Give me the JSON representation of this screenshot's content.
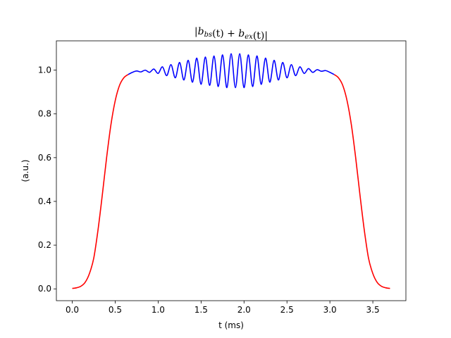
{
  "chart_data": {
    "type": "line",
    "title": "|b_bs(t) + b_ex(t)|",
    "xlabel": "t (ms)",
    "ylabel": "(a.u.)",
    "xlim": [
      -0.185,
      3.885
    ],
    "ylim": [
      -0.054,
      1.134
    ],
    "xticks": [
      0.0,
      0.5,
      1.0,
      1.5,
      2.0,
      2.5,
      3.0,
      3.5
    ],
    "xtick_labels": [
      "0.0",
      "0.5",
      "1.0",
      "1.5",
      "2.0",
      "2.5",
      "3.0",
      "3.5"
    ],
    "yticks": [
      0.0,
      0.2,
      0.4,
      0.6,
      0.8,
      1.0
    ],
    "ytick_labels": [
      "0.0",
      "0.2",
      "0.4",
      "0.6",
      "0.8",
      "1.0"
    ],
    "grid": false,
    "series": [
      {
        "color": "#ff0000",
        "segments": [
          {
            "x": [
              0.0,
              0.05,
              0.1,
              0.15,
              0.2,
              0.25,
              0.3,
              0.35,
              0.4,
              0.45,
              0.5,
              0.55,
              0.6,
              0.65
            ],
            "y": [
              0.002,
              0.005,
              0.012,
              0.03,
              0.07,
              0.14,
              0.27,
              0.43,
              0.6,
              0.75,
              0.86,
              0.93,
              0.965,
              0.98
            ]
          },
          {
            "x": [
              3.05,
              3.1,
              3.15,
              3.2,
              3.25,
              3.3,
              3.35,
              3.4,
              3.45,
              3.5,
              3.55,
              3.6,
              3.65,
              3.7
            ],
            "y": [
              0.98,
              0.965,
              0.93,
              0.86,
              0.75,
              0.6,
              0.43,
              0.27,
              0.14,
              0.07,
              0.03,
              0.012,
              0.005,
              0.002
            ]
          }
        ]
      },
      {
        "color": "#0000ff",
        "segments": [
          {
            "x": [
              0.65,
              0.7,
              0.75,
              0.8,
              0.85,
              0.9,
              0.95,
              1.0,
              1.05,
              1.1,
              1.15,
              1.2,
              1.25,
              1.3,
              1.35,
              1.4,
              1.45,
              1.5,
              1.55,
              1.6,
              1.65,
              1.7,
              1.75,
              1.8,
              1.85,
              1.9,
              1.95,
              2.0,
              2.05,
              2.1,
              2.15,
              2.2,
              2.25,
              2.3,
              2.35,
              2.4,
              2.45,
              2.5,
              2.55,
              2.6,
              2.65,
              2.7,
              2.75,
              2.8,
              2.85,
              2.9,
              2.95,
              3.0,
              3.05
            ],
            "y": [
              0.98,
              0.99,
              0.996,
              0.992,
              1.0,
              0.99,
              1.005,
              0.985,
              1.015,
              0.975,
              1.025,
              0.965,
              1.035,
              0.955,
              1.045,
              0.945,
              1.055,
              0.935,
              1.06,
              0.93,
              1.065,
              0.925,
              1.07,
              0.92,
              1.075,
              0.92,
              1.075,
              0.92,
              1.07,
              0.925,
              1.065,
              0.935,
              1.055,
              0.945,
              1.045,
              0.955,
              1.035,
              0.965,
              1.025,
              0.975,
              1.015,
              0.985,
              1.007,
              0.99,
              1.002,
              0.995,
              0.998,
              0.99,
              0.98
            ]
          }
        ]
      }
    ]
  }
}
